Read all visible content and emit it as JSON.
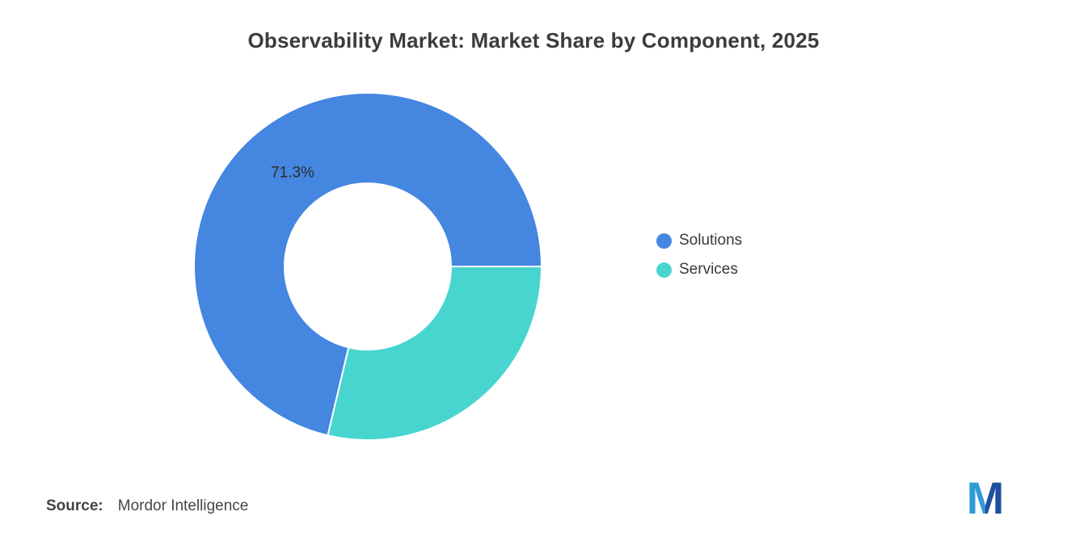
{
  "chart_data": {
    "type": "pie",
    "subtype": "donut",
    "title": "Observability Market: Market Share by Component, 2025",
    "slices": [
      {
        "label": "Solutions",
        "value": 71.3,
        "data_label": "71.3%",
        "color": "#4486E0"
      },
      {
        "label": "Services",
        "value": 28.7,
        "data_label": "",
        "color": "#48D5CF"
      }
    ],
    "start_angle_deg": 103.32,
    "direction": "clockwise",
    "inner_radius_ratio": 0.48,
    "legend_position": "right",
    "grid": false
  },
  "source": {
    "label": "Source:",
    "text": "Mordor Intelligence"
  },
  "logo": {
    "letter": "M",
    "color_left": "#2E9BD6",
    "color_right": "#1D4F9E"
  }
}
